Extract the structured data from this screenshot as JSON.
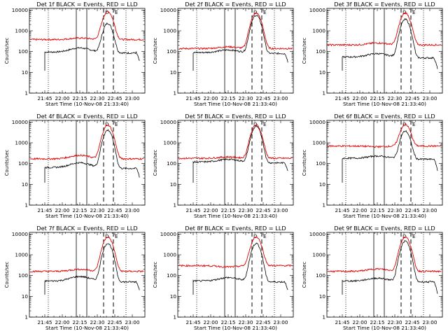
{
  "chart_data": [
    {
      "type": "line",
      "title": "Det 1f BLACK = Events, RED = LLD",
      "xlabel": "Start Time (10-Nov-08 21:33:40)",
      "ylabel": "Counts/sec",
      "xticks": [
        "21:45",
        "22:00",
        "22:15",
        "22:30",
        "22:45",
        "23:00"
      ],
      "yticks": [
        "1",
        "10",
        "100",
        "1000",
        "10000"
      ],
      "ylim": [
        1,
        12000
      ],
      "y_scale": "log",
      "series": [
        {
          "color": "#000000",
          "base": 95,
          "bump": 150,
          "peak": 2200
        },
        {
          "color": "#e00000",
          "base": 380,
          "bump": 450,
          "peak": 8000
        }
      ],
      "annotations": [
        "D",
        "E"
      ]
    },
    {
      "type": "line",
      "title": "Det 2f BLACK = Events, RED = LLD",
      "xlabel": "Start Time (10-Nov-08 21:33:40)",
      "ylabel": "Counts/sec",
      "xticks": [
        "21:45",
        "22:00",
        "22:15",
        "22:30",
        "22:45",
        "23:00"
      ],
      "yticks": [
        "1",
        "10",
        "100",
        "1000",
        "10000"
      ],
      "ylim": [
        1,
        12000
      ],
      "y_scale": "log",
      "series": [
        {
          "color": "#000000",
          "base": 90,
          "bump": 120,
          "peak": 5500
        },
        {
          "color": "#e00000",
          "base": 140,
          "bump": 170,
          "peak": 7000
        }
      ],
      "annotations": [
        "D",
        "E"
      ]
    },
    {
      "type": "line",
      "title": "Det 3f BLACK = Events, RED = LLD",
      "xlabel": "Start Time (10-Nov-08 21:33:40)",
      "ylabel": "Counts/sec",
      "xticks": [
        "21:45",
        "22:00",
        "22:15",
        "22:30",
        "22:45",
        "23:00"
      ],
      "yticks": [
        "1",
        "10",
        "100",
        "1000",
        "10000"
      ],
      "ylim": [
        1,
        12000
      ],
      "y_scale": "log",
      "series": [
        {
          "color": "#000000",
          "base": 55,
          "bump": 80,
          "peak": 3500
        },
        {
          "color": "#e00000",
          "base": 210,
          "bump": 260,
          "peak": 7000
        }
      ],
      "annotations": [
        "D",
        "E"
      ]
    },
    {
      "type": "line",
      "title": "Det 4f BLACK = Events, RED = LLD",
      "xlabel": "Start Time (10-Nov-08 21:33:40)",
      "ylabel": "Counts/sec",
      "xticks": [
        "21:45",
        "22:00",
        "22:15",
        "22:30",
        "22:45",
        "23:00"
      ],
      "yticks": [
        "1",
        "10",
        "100",
        "1000",
        "10000"
      ],
      "ylim": [
        1,
        12000
      ],
      "y_scale": "log",
      "series": [
        {
          "color": "#000000",
          "base": 65,
          "bump": 110,
          "peak": 4000
        },
        {
          "color": "#e00000",
          "base": 170,
          "bump": 250,
          "peak": 7000
        }
      ],
      "annotations": [
        "D",
        "E"
      ]
    },
    {
      "type": "line",
      "title": "Det 5f BLACK = Events, RED = LLD",
      "xlabel": "Start Time (10-Nov-08 21:33:40)",
      "ylabel": "Counts/sec",
      "xticks": [
        "21:45",
        "22:00",
        "22:15",
        "22:30",
        "22:45",
        "23:00"
      ],
      "yticks": [
        "1",
        "10",
        "100",
        "1000",
        "10000"
      ],
      "ylim": [
        1,
        12000
      ],
      "y_scale": "log",
      "series": [
        {
          "color": "#000000",
          "base": 120,
          "bump": 160,
          "peak": 6000
        },
        {
          "color": "#e00000",
          "base": 180,
          "bump": 210,
          "peak": 7000
        }
      ],
      "annotations": [
        "D",
        "E"
      ]
    },
    {
      "type": "line",
      "title": "Det 6f BLACK = Events, RED = LLD",
      "xlabel": "Start Time (10-Nov-08 21:33:40)",
      "ylabel": "Counts/sec",
      "xticks": [
        "21:45",
        "22:00",
        "22:15",
        "22:30",
        "22:45",
        "23:00"
      ],
      "yticks": [
        "1",
        "10",
        "100",
        "1000",
        "10000"
      ],
      "ylim": [
        1,
        12000
      ],
      "y_scale": "log",
      "series": [
        {
          "color": "#000000",
          "base": 180,
          "bump": 230,
          "peak": 3500
        },
        {
          "color": "#e00000",
          "base": 700,
          "bump": 650,
          "peak": 7000
        }
      ],
      "annotations": [
        "D",
        "E"
      ]
    },
    {
      "type": "line",
      "title": "Det 7f BLACK = Events, RED = LLD",
      "xlabel": "Start Time (10-Nov-08 21:33:40)",
      "ylabel": "Counts/sec",
      "xticks": [
        "21:45",
        "22:00",
        "22:15",
        "22:30",
        "22:45",
        "23:00"
      ],
      "yticks": [
        "1",
        "10",
        "100",
        "1000",
        "10000"
      ],
      "ylim": [
        1,
        12000
      ],
      "y_scale": "log",
      "series": [
        {
          "color": "#000000",
          "base": 55,
          "bump": 90,
          "peak": 3500
        },
        {
          "color": "#e00000",
          "base": 160,
          "bump": 200,
          "peak": 7000
        }
      ],
      "annotations": [
        "D",
        "E"
      ]
    },
    {
      "type": "line",
      "title": "Det 8f BLACK = Events, RED = LLD",
      "xlabel": "Start Time (10-Nov-08 21:33:40)",
      "ylabel": "Counts/sec",
      "xticks": [
        "21:45",
        "22:00",
        "22:15",
        "22:30",
        "22:45",
        "23:00"
      ],
      "yticks": [
        "1",
        "10",
        "100",
        "1000",
        "10000"
      ],
      "ylim": [
        1,
        12000
      ],
      "y_scale": "log",
      "series": [
        {
          "color": "#000000",
          "base": 55,
          "bump": 80,
          "peak": 3500
        },
        {
          "color": "#e00000",
          "base": 300,
          "bump": 260,
          "peak": 7000
        }
      ],
      "annotations": [
        "D",
        "E"
      ]
    },
    {
      "type": "line",
      "title": "Det 9f BLACK = Events, RED = LLD",
      "xlabel": "Start Time (10-Nov-08 21:33:40)",
      "ylabel": "Counts/sec",
      "xticks": [
        "21:45",
        "22:00",
        "22:15",
        "22:30",
        "22:45",
        "23:00"
      ],
      "yticks": [
        "1",
        "10",
        "100",
        "1000",
        "10000"
      ],
      "ylim": [
        1,
        12000
      ],
      "y_scale": "log",
      "series": [
        {
          "color": "#000000",
          "base": 55,
          "bump": 75,
          "peak": 4500
        },
        {
          "color": "#e00000",
          "base": 160,
          "bump": 210,
          "peak": 7000
        }
      ],
      "annotations": [
        "D",
        "E"
      ]
    }
  ]
}
